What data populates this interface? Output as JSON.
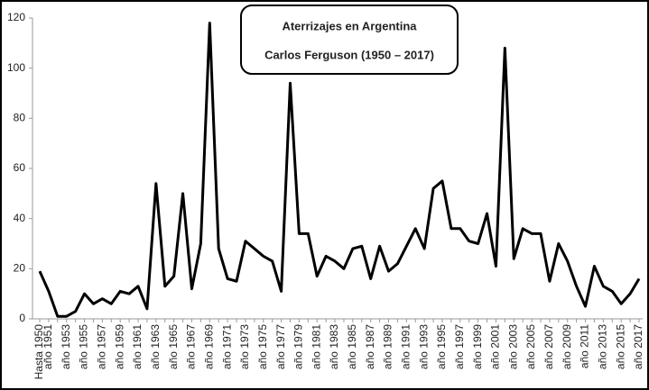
{
  "chart_data": {
    "type": "line",
    "title": "Aterrizajes en Argentina",
    "subtitle": "Carlos Ferguson (1950 – 2017)",
    "categories": [
      "Hasta 1950",
      "año 1951",
      null,
      "año 1953",
      null,
      "año 1955",
      null,
      "año 1957",
      null,
      "año 1959",
      null,
      "año 1961",
      null,
      "año 1963",
      null,
      "año 1965",
      null,
      "año 1967",
      null,
      "año 1969",
      null,
      "año 1971",
      null,
      "año 1973",
      null,
      "año 1975",
      null,
      "año 1977",
      null,
      "año 1979",
      null,
      "año 1981",
      null,
      "año 1983",
      null,
      "año 1985",
      null,
      "año 1987",
      null,
      "año 1989",
      null,
      "año 1991",
      null,
      "año 1993",
      null,
      "año 1995",
      null,
      "año 1997",
      null,
      "año 1999",
      null,
      "año 2001",
      null,
      "año 2003",
      null,
      "año 2005",
      null,
      "año 2007",
      null,
      "año 2009",
      null,
      "año 2011",
      null,
      "año 2013",
      null,
      "año 2015",
      null,
      "año 2017"
    ],
    "series": [
      {
        "name": null,
        "color": "#000000",
        "values": [
          19,
          11,
          1,
          1,
          3,
          10,
          6,
          8,
          6,
          11,
          10,
          13,
          4,
          54,
          13,
          17,
          50,
          12,
          30,
          118,
          28,
          16,
          15,
          31,
          28,
          25,
          23,
          11,
          94,
          34,
          34,
          17,
          25,
          23,
          20,
          28,
          29,
          16,
          29,
          19,
          22,
          29,
          36,
          28,
          52,
          55,
          36,
          36,
          31,
          30,
          42,
          21,
          108,
          24,
          36,
          34,
          34,
          15,
          30,
          23,
          13,
          5,
          21,
          13,
          11,
          6,
          10,
          16
        ]
      }
    ],
    "ylim": [
      0,
      120
    ],
    "yticks": [
      0,
      20,
      40,
      60,
      80,
      100,
      120
    ],
    "grid": false
  }
}
